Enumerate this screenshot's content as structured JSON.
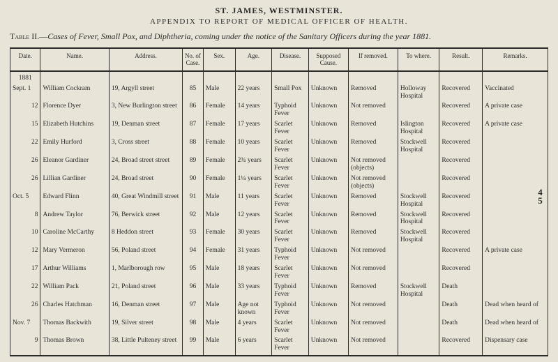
{
  "header": {
    "line1": "ST. JAMES, WESTMINSTER.",
    "line2": "APPENDIX TO REPORT OF MEDICAL OFFICER OF HEALTH."
  },
  "caption": {
    "table_label": "Table II.—",
    "text": "Cases of Fever, Small Pox, and Diphtheria, coming under the notice of the Sanitary Officers during the year 1881."
  },
  "margin_page": "45",
  "columns": {
    "date": "Date.",
    "name": "Name.",
    "address": "Address.",
    "no": "No. of Case.",
    "sex": "Sex.",
    "age": "Age.",
    "disease": "Disease.",
    "cause": "Supposed Cause.",
    "removed": "If removed.",
    "where": "To where.",
    "result": "Result.",
    "remarks": "Remarks."
  },
  "year_header": "1881",
  "rows": [
    {
      "date": "Sept. 1",
      "name": "William Cockram",
      "address": "19, Argyll street",
      "no": "85",
      "sex": "Male",
      "age": "22 years",
      "disease": "Small Pox",
      "cause": "Unknown",
      "removed": "Removed",
      "where": "Holloway Hospital",
      "result": "Recovered",
      "remarks": "Vaccinated"
    },
    {
      "date": "12",
      "name": "Florence Dyer",
      "address": "3, New Burlington street",
      "no": "86",
      "sex": "Female",
      "age": "14 years",
      "disease": "Typhoid Fever",
      "cause": "Unknown",
      "removed": "Not removed",
      "where": "",
      "result": "Recovered",
      "remarks": "A private case"
    },
    {
      "date": "15",
      "name": "Elizabeth Hutchins",
      "address": "19, Denman street",
      "no": "87",
      "sex": "Female",
      "age": "17 years",
      "disease": "Scarlet Fever",
      "cause": "Unknown",
      "removed": "Removed",
      "where": "Islington Hospital",
      "result": "Recovered",
      "remarks": "A private case"
    },
    {
      "date": "22",
      "name": "Emily Hurford",
      "address": "3, Cross street",
      "no": "88",
      "sex": "Female",
      "age": "10 years",
      "disease": "Scarlet Fever",
      "cause": "Unknown",
      "removed": "Removed",
      "where": "Stockwell Hospital",
      "result": "Recovered",
      "remarks": ""
    },
    {
      "date": "26",
      "name": "Eleanor Gardiner",
      "address": "24, Broad street street",
      "no": "89",
      "sex": "Female",
      "age": "2¾ years",
      "disease": "Scarlet Fever",
      "cause": "Unknown",
      "removed": "Not removed (objects)",
      "where": "",
      "result": "Recovered",
      "remarks": ""
    },
    {
      "date": "26",
      "name": "Lillian Gardiner",
      "address": "24, Broad street",
      "no": "90",
      "sex": "Female",
      "age": "1¼ years",
      "disease": "Scarlet Fever",
      "cause": "Unknown",
      "removed": "Not removed (objects)",
      "where": "",
      "result": "Recovered",
      "remarks": ""
    },
    {
      "date": "Oct. 5",
      "name": "Edward Flinn",
      "address": "40, Great Windmill street",
      "no": "91",
      "sex": "Male",
      "age": "11 years",
      "disease": "Scarlet Fever",
      "cause": "Unknown",
      "removed": "Removed",
      "where": "Stockwell Hospital",
      "result": "Recovered",
      "remarks": ""
    },
    {
      "date": "8",
      "name": "Andrew Taylor",
      "address": "76, Berwick street",
      "no": "92",
      "sex": "Male",
      "age": "12 years",
      "disease": "Scarlet Fever",
      "cause": "Unknown",
      "removed": "Removed",
      "where": "Stockwell Hospital",
      "result": "Recovered",
      "remarks": ""
    },
    {
      "date": "10",
      "name": "Caroline McCarthy",
      "address": "8 Heddon street",
      "no": "93",
      "sex": "Female",
      "age": "30 years",
      "disease": "Scarlet Fever",
      "cause": "Unknown",
      "removed": "Removed",
      "where": "Stockwell Hospital",
      "result": "Recovered",
      "remarks": ""
    },
    {
      "date": "12",
      "name": "Mary Vermeron",
      "address": "56, Poland street",
      "no": "94",
      "sex": "Female",
      "age": "31 years",
      "disease": "Typhoid Fever",
      "cause": "Unknown",
      "removed": "Not removed",
      "where": "",
      "result": "Recovered",
      "remarks": "A private case"
    },
    {
      "date": "17",
      "name": "Arthur Williams",
      "address": "1, Marlborough row",
      "no": "95",
      "sex": "Male",
      "age": "18 years",
      "disease": "Scarlet Fever",
      "cause": "Unknown",
      "removed": "Not removed",
      "where": "",
      "result": "Recovered",
      "remarks": ""
    },
    {
      "date": "22",
      "name": "William Pack",
      "address": "21, Poland street",
      "no": "96",
      "sex": "Male",
      "age": "33 years",
      "disease": "Typhoid Fever",
      "cause": "Unknown",
      "removed": "Removed",
      "where": "Stockwell Hospital",
      "result": "Death",
      "remarks": ""
    },
    {
      "date": "26",
      "name": "Charles Hatchman",
      "address": "16, Denman street",
      "no": "97",
      "sex": "Male",
      "age": "Age not known",
      "disease": "Typhoid Fever",
      "cause": "Unknown",
      "removed": "Not removed",
      "where": "",
      "result": "Death",
      "remarks": "Dead when heard of"
    },
    {
      "date": "Nov. 7",
      "name": "Thomas Backwith",
      "address": "19, Silver street",
      "no": "98",
      "sex": "Male",
      "age": "4 years",
      "disease": "Scarlet Fever",
      "cause": "Unknown",
      "removed": "Not removed",
      "where": "",
      "result": "Death",
      "remarks": "Dead when heard of"
    },
    {
      "date": "9",
      "name": "Thomas Brown",
      "address": "38, Little Pulteney street",
      "no": "99",
      "sex": "Male",
      "age": "6 years",
      "disease": "Scarlet Fever",
      "cause": "Unknown",
      "removed": "Not removed",
      "where": "",
      "result": "Recovered",
      "remarks": "Dispensary case"
    }
  ]
}
